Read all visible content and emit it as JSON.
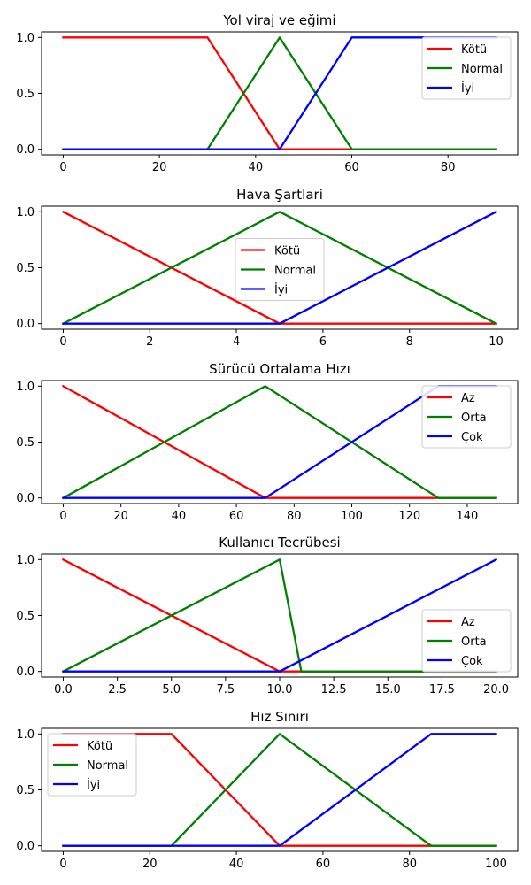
{
  "chart_data": [
    {
      "type": "line",
      "title": "Yol viraj ve eğimi",
      "xlim": [
        -4.5,
        94.5
      ],
      "ylim": [
        -0.05,
        1.05
      ],
      "xticks": [
        0,
        20,
        40,
        60,
        80
      ],
      "xtick_labels": [
        "0",
        "20",
        "40",
        "60",
        "80"
      ],
      "yticks": [
        0,
        0.5,
        1
      ],
      "ytick_labels": [
        "0.0",
        "0.5",
        "1.0"
      ],
      "legend_position": "top-right",
      "series": [
        {
          "name": "Kötü",
          "color": "#ff0000",
          "x": [
            0,
            30,
            45,
            90
          ],
          "y": [
            1,
            1,
            0,
            0
          ]
        },
        {
          "name": "Normal",
          "color": "#008000",
          "x": [
            0,
            30,
            45,
            60,
            90
          ],
          "y": [
            0,
            0,
            1,
            0,
            0
          ]
        },
        {
          "name": "İyi",
          "color": "#0000ff",
          "x": [
            0,
            45,
            60,
            90
          ],
          "y": [
            0,
            0,
            1,
            1
          ]
        }
      ]
    },
    {
      "type": "line",
      "title": "Hava Şartlari",
      "xlim": [
        -0.5,
        10.5
      ],
      "ylim": [
        -0.05,
        1.05
      ],
      "xticks": [
        0,
        2,
        4,
        6,
        8,
        10
      ],
      "xtick_labels": [
        "0",
        "2",
        "4",
        "6",
        "8",
        "10"
      ],
      "yticks": [
        0,
        0.5,
        1
      ],
      "ytick_labels": [
        "0.0",
        "0.5",
        "1.0"
      ],
      "legend_position": "center",
      "series": [
        {
          "name": "Kötü",
          "color": "#ff0000",
          "x": [
            0,
            5,
            10
          ],
          "y": [
            1,
            0,
            0
          ]
        },
        {
          "name": "Normal",
          "color": "#008000",
          "x": [
            0,
            5,
            10
          ],
          "y": [
            0,
            1,
            0
          ]
        },
        {
          "name": "İyi",
          "color": "#0000ff",
          "x": [
            0,
            5,
            10
          ],
          "y": [
            0,
            0,
            1
          ]
        }
      ]
    },
    {
      "type": "line",
      "title": "Sürücü Ortalama Hızı",
      "xlim": [
        -7.5,
        157.5
      ],
      "ylim": [
        -0.05,
        1.05
      ],
      "xticks": [
        0,
        20,
        40,
        60,
        80,
        100,
        120,
        140
      ],
      "xtick_labels": [
        "0",
        "20",
        "40",
        "60",
        "80",
        "100",
        "120",
        "140"
      ],
      "yticks": [
        0,
        0.5,
        1
      ],
      "ytick_labels": [
        "0.0",
        "0.5",
        "1.0"
      ],
      "legend_position": "top-right",
      "series": [
        {
          "name": "Az",
          "color": "#ff0000",
          "x": [
            0,
            70,
            150
          ],
          "y": [
            1,
            0,
            0
          ]
        },
        {
          "name": "Orta",
          "color": "#008000",
          "x": [
            0,
            70,
            130,
            150
          ],
          "y": [
            0,
            1,
            0,
            0
          ]
        },
        {
          "name": "Çok",
          "color": "#0000ff",
          "x": [
            0,
            70,
            130,
            150
          ],
          "y": [
            0,
            0,
            1,
            1
          ]
        }
      ]
    },
    {
      "type": "line",
      "title": "Kullanıcı Tecrübesi",
      "xlim": [
        -1,
        21
      ],
      "ylim": [
        -0.05,
        1.05
      ],
      "xticks": [
        0,
        2.5,
        5,
        7.5,
        10,
        12.5,
        15,
        17.5,
        20
      ],
      "xtick_labels": [
        "0.0",
        "2.5",
        "5.0",
        "7.5",
        "10.0",
        "12.5",
        "15.0",
        "17.5",
        "20.0"
      ],
      "yticks": [
        0,
        0.5,
        1
      ],
      "ytick_labels": [
        "0.0",
        "0.5",
        "1.0"
      ],
      "legend_position": "bottom-right",
      "series": [
        {
          "name": "Az",
          "color": "#ff0000",
          "x": [
            0,
            10,
            20
          ],
          "y": [
            1,
            0,
            0
          ]
        },
        {
          "name": "Orta",
          "color": "#008000",
          "x": [
            0,
            10,
            11,
            20
          ],
          "y": [
            0,
            1,
            0,
            0
          ]
        },
        {
          "name": "Çok",
          "color": "#0000ff",
          "x": [
            0,
            10,
            20
          ],
          "y": [
            0,
            0,
            1
          ]
        }
      ]
    },
    {
      "type": "line",
      "title": "Hız Sınırı",
      "xlim": [
        -5,
        105
      ],
      "ylim": [
        -0.05,
        1.05
      ],
      "xticks": [
        0,
        20,
        40,
        60,
        80,
        100
      ],
      "xtick_labels": [
        "0",
        "20",
        "40",
        "60",
        "80",
        "100"
      ],
      "yticks": [
        0,
        0.5,
        1
      ],
      "ytick_labels": [
        "0.0",
        "0.5",
        "1.0"
      ],
      "legend_position": "top-left",
      "series": [
        {
          "name": "Kötü",
          "color": "#ff0000",
          "x": [
            0,
            25,
            50,
            100
          ],
          "y": [
            1,
            1,
            0,
            0
          ]
        },
        {
          "name": "Normal",
          "color": "#008000",
          "x": [
            0,
            25,
            50,
            85,
            100
          ],
          "y": [
            0,
            0,
            1,
            0,
            0
          ]
        },
        {
          "name": "İyi",
          "color": "#0000ff",
          "x": [
            0,
            50,
            85,
            100
          ],
          "y": [
            0,
            0,
            1,
            1
          ]
        }
      ]
    }
  ]
}
